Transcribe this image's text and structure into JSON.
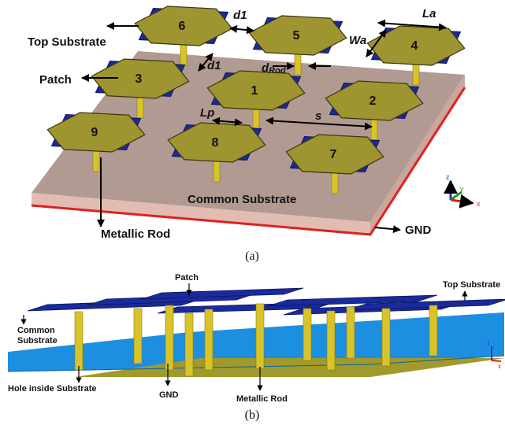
{
  "figure_a": {
    "patch_numbers": [
      "6",
      "5",
      "4",
      "3",
      "1",
      "2",
      "9",
      "8",
      "7"
    ],
    "labels": {
      "top_substrate": "Top Substrate",
      "patch": "Patch",
      "metallic_rod": "Metallic Rod",
      "common_substrate": "Common Substrate",
      "gnd": "GND"
    },
    "dimensions": {
      "d1_horizontal": "d1",
      "d1_vertical": "d1",
      "d_rod": "d",
      "d_rod_subscript": "Rod",
      "la": "La",
      "wa": "Wa",
      "lp": "Lp",
      "s": "s"
    },
    "axes": {
      "z": "z",
      "y": "y",
      "x": "x"
    },
    "caption": "(a)"
  },
  "figure_b": {
    "labels": {
      "patch": "Patch",
      "top_substrate": "Top Substrate",
      "common_substrate_line1": "Common",
      "common_substrate_line2": "Substrate",
      "hole": "Hole inside Substrate",
      "gnd": "GND",
      "metallic_rod": "Metallic Rod"
    },
    "axes": {
      "z": "z",
      "x": "x"
    },
    "caption": "(b)"
  }
}
